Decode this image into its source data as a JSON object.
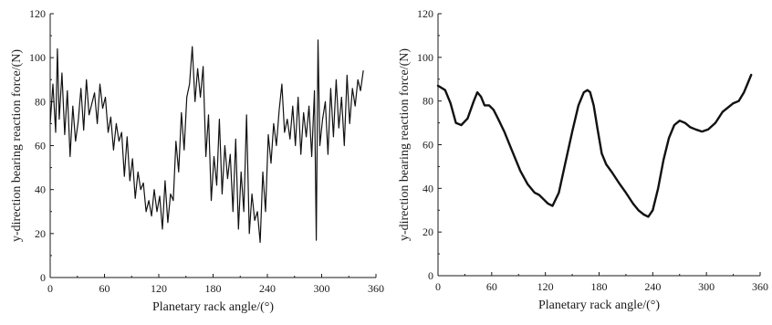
{
  "chart_data": [
    {
      "type": "line",
      "title": "",
      "xlabel": "Planetary rack angle/(°)",
      "ylabel": "y-direction bearing reaction force/(N)",
      "xlim": [
        0,
        360
      ],
      "ylim": [
        0,
        120
      ],
      "x_ticks": [
        "0",
        "60",
        "120",
        "180",
        "240",
        "300",
        "360"
      ],
      "y_ticks": [
        "0",
        "20",
        "40",
        "60",
        "80",
        "100",
        "120"
      ],
      "grid": false,
      "series": [
        {
          "color": "#111111",
          "x": [
            0,
            3,
            6,
            8,
            10,
            13,
            16,
            19,
            22,
            25,
            28,
            31,
            34,
            37,
            40,
            43,
            46,
            49,
            52,
            55,
            58,
            61,
            64,
            67,
            70,
            73,
            76,
            79,
            82,
            85,
            88,
            91,
            94,
            97,
            100,
            103,
            106,
            109,
            112,
            115,
            118,
            121,
            124,
            127,
            130,
            133,
            136,
            139,
            142,
            145,
            148,
            151,
            154,
            157,
            160,
            163,
            166,
            169,
            172,
            175,
            178,
            181,
            184,
            187,
            190,
            193,
            196,
            199,
            202,
            205,
            208,
            211,
            214,
            217,
            220,
            223,
            226,
            229,
            232,
            235,
            238,
            241,
            244,
            247,
            250,
            253,
            256,
            259,
            262,
            265,
            268,
            271,
            274,
            277,
            280,
            283,
            286,
            289,
            292,
            294,
            296,
            298,
            301,
            304,
            307,
            310,
            313,
            316,
            319,
            322,
            325,
            328,
            331,
            334,
            337,
            340,
            343,
            346
          ],
          "values": [
            70,
            88,
            66,
            104,
            72,
            93,
            65,
            85,
            55,
            78,
            62,
            71,
            86,
            67,
            90,
            74,
            79,
            84,
            70,
            88,
            77,
            82,
            66,
            73,
            58,
            70,
            62,
            66,
            46,
            64,
            44,
            54,
            36,
            48,
            40,
            43,
            30,
            35,
            28,
            40,
            30,
            37,
            22,
            44,
            25,
            38,
            35,
            62,
            48,
            75,
            58,
            82,
            88,
            105,
            80,
            95,
            82,
            96,
            55,
            74,
            35,
            55,
            42,
            72,
            38,
            60,
            45,
            56,
            30,
            63,
            22,
            48,
            30,
            74,
            20,
            38,
            26,
            30,
            16,
            48,
            30,
            65,
            52,
            70,
            60,
            76,
            88,
            66,
            72,
            63,
            78,
            60,
            82,
            56,
            75,
            64,
            78,
            55,
            85,
            17,
            108,
            60,
            72,
            80,
            56,
            86,
            64,
            90,
            68,
            82,
            60,
            92,
            70,
            86,
            78,
            90,
            85,
            94
          ]
        }
      ]
    },
    {
      "type": "line",
      "title": "",
      "xlabel": "Planetary rack angle/(°)",
      "ylabel": "y-direction bearing reaction force/(N)",
      "xlim": [
        0,
        360
      ],
      "ylim": [
        0,
        120
      ],
      "x_ticks": [
        "0",
        "60",
        "120",
        "180",
        "240",
        "300",
        "360"
      ],
      "y_ticks": [
        "0",
        "20",
        "40",
        "60",
        "80",
        "100",
        "120"
      ],
      "grid": false,
      "series": [
        {
          "color": "#111111",
          "x": [
            0,
            8,
            14,
            20,
            26,
            33,
            40,
            44,
            48,
            52,
            57,
            62,
            67,
            74,
            82,
            92,
            100,
            108,
            113,
            118,
            123,
            128,
            135,
            142,
            150,
            157,
            163,
            167,
            170,
            174,
            178,
            183,
            188,
            195,
            203,
            210,
            218,
            224,
            230,
            235,
            240,
            246,
            252,
            258,
            264,
            270,
            276,
            282,
            288,
            295,
            302,
            310,
            318,
            324,
            330,
            336,
            342,
            346,
            350
          ],
          "values": [
            87,
            85,
            79,
            70,
            69,
            72,
            80,
            84,
            82,
            78,
            78,
            76,
            72,
            66,
            58,
            48,
            42,
            38,
            37,
            35,
            33,
            32,
            38,
            51,
            66,
            78,
            84,
            85,
            84,
            78,
            68,
            56,
            51,
            47,
            42,
            38,
            33,
            30,
            28,
            27,
            30,
            40,
            53,
            63,
            69,
            71,
            70,
            68,
            67,
            66,
            67,
            70,
            75,
            77,
            79,
            80,
            84,
            88,
            92
          ]
        }
      ]
    }
  ]
}
